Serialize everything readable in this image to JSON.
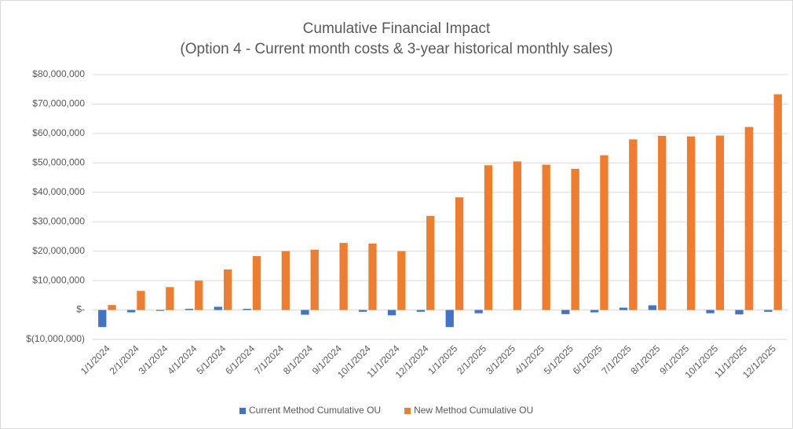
{
  "chart_data": {
    "type": "bar",
    "title": "Cumulative Financial Impact",
    "subtitle": "(Option 4 - Current month costs & 3-year historical monthly sales)",
    "categories": [
      "1/1/2024",
      "2/1/2024",
      "3/1/2024",
      "4/1/2024",
      "5/1/2024",
      "6/1/2024",
      "7/1/2024",
      "8/1/2024",
      "9/1/2024",
      "10/1/2024",
      "11/1/2024",
      "12/1/2024",
      "1/1/2025",
      "2/1/2025",
      "3/1/2025",
      "4/1/2025",
      "5/1/2025",
      "6/1/2025",
      "7/1/2025",
      "8/1/2025",
      "9/1/2025",
      "10/1/2025",
      "11/1/2025",
      "12/1/2025"
    ],
    "series": [
      {
        "name": "Current Method Cumulative OU",
        "color": "#4472c4",
        "values": [
          -5800000,
          -800000,
          -300000,
          400000,
          1100000,
          400000,
          0,
          -1600000,
          0,
          -600000,
          -1800000,
          -600000,
          -5800000,
          -1100000,
          0,
          0,
          -1400000,
          -800000,
          800000,
          1600000,
          0,
          -1100000,
          -1500000,
          -600000
        ]
      },
      {
        "name": "New Method Cumulative OU",
        "color": "#ed7d31",
        "values": [
          1700000,
          6500000,
          7800000,
          10000000,
          13800000,
          18300000,
          20000000,
          20500000,
          22800000,
          22600000,
          20000000,
          32000000,
          38300000,
          49200000,
          50500000,
          49400000,
          48000000,
          52600000,
          58000000,
          59200000,
          59000000,
          59300000,
          62200000,
          73300000
        ]
      }
    ],
    "ylim": [
      -10000000,
      80000000
    ],
    "yticks": [
      {
        "value": -10000000,
        "label": "$(10,000,000)"
      },
      {
        "value": 0,
        "label": "$-"
      },
      {
        "value": 10000000,
        "label": "$10,000,000"
      },
      {
        "value": 20000000,
        "label": "$20,000,000"
      },
      {
        "value": 30000000,
        "label": "$30,000,000"
      },
      {
        "value": 40000000,
        "label": "$40,000,000"
      },
      {
        "value": 50000000,
        "label": "$50,000,000"
      },
      {
        "value": 60000000,
        "label": "$60,000,000"
      },
      {
        "value": 70000000,
        "label": "$70,000,000"
      },
      {
        "value": 80000000,
        "label": "$80,000,000"
      }
    ],
    "grid": true,
    "legend": "bottom"
  }
}
